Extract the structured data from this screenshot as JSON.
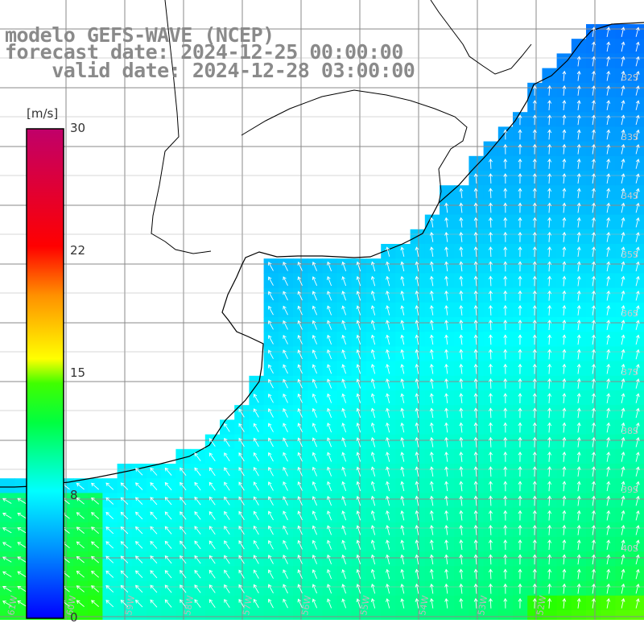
{
  "header": {
    "model": "modelo GEFS-WAVE (NCEP)",
    "forecast": "forecast date: 2024-12-25 00:00:00",
    "valid": "valid date: 2024-12-28 03:00:00"
  },
  "colorbar": {
    "unit": "[m/s]",
    "min": 0,
    "max": 30,
    "ticks": [
      "30",
      "22",
      "15",
      "8",
      "0"
    ],
    "tick_values": [
      30,
      22,
      15,
      8,
      0
    ],
    "colors": [
      "#0000ff",
      "#00a0ff",
      "#00ffff",
      "#00ff40",
      "#40ff00",
      "#ffff00",
      "#ff8000",
      "#ff0000",
      "#c00060"
    ]
  },
  "map": {
    "field": "wind speed 10 m",
    "field_range_ms": [
      4,
      13
    ],
    "arrow_direction": "north-west / north",
    "lat_labels": [
      "32S",
      "33S",
      "34S",
      "35S",
      "36S",
      "37S",
      "38S",
      "39S",
      "40S"
    ],
    "lon_labels": [
      "61W",
      "60W",
      "59W",
      "58W",
      "57W",
      "56W",
      "55W",
      "54W",
      "53W",
      "52W"
    ],
    "land_color": "#ffffff",
    "grid_color": "#7a7a7a"
  }
}
